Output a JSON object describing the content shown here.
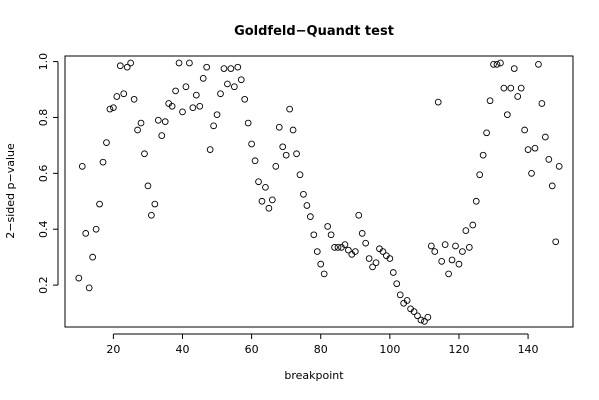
{
  "chart_data": {
    "type": "scatter",
    "title": "Goldfeld−Quandt test",
    "xlabel": "breakpoint",
    "ylabel": "2−sided p−value",
    "xlim": [
      6,
      153
    ],
    "ylim": [
      0.05,
      1.02
    ],
    "x_ticks": [
      20,
      40,
      60,
      80,
      100,
      120,
      140
    ],
    "y_ticks": [
      0.2,
      0.4,
      0.6,
      0.8,
      1.0
    ],
    "x_tick_labels": [
      "20",
      "40",
      "60",
      "80",
      "100",
      "120",
      "140"
    ],
    "y_tick_labels": [
      "0.2",
      "0.4",
      "0.6",
      "0.8",
      "1.0"
    ],
    "marker": "open-circle",
    "grid": false,
    "points": [
      [
        10,
        0.225
      ],
      [
        11,
        0.625
      ],
      [
        12,
        0.385
      ],
      [
        13,
        0.19
      ],
      [
        14,
        0.3
      ],
      [
        15,
        0.4
      ],
      [
        16,
        0.49
      ],
      [
        17,
        0.64
      ],
      [
        18,
        0.71
      ],
      [
        19,
        0.83
      ],
      [
        20,
        0.835
      ],
      [
        21,
        0.875
      ],
      [
        22,
        0.985
      ],
      [
        23,
        0.885
      ],
      [
        24,
        0.98
      ],
      [
        25,
        0.995
      ],
      [
        26,
        0.865
      ],
      [
        27,
        0.755
      ],
      [
        28,
        0.78
      ],
      [
        29,
        0.67
      ],
      [
        30,
        0.555
      ],
      [
        31,
        0.45
      ],
      [
        32,
        0.49
      ],
      [
        33,
        0.79
      ],
      [
        34,
        0.735
      ],
      [
        35,
        0.785
      ],
      [
        36,
        0.85
      ],
      [
        37,
        0.84
      ],
      [
        38,
        0.895
      ],
      [
        39,
        0.995
      ],
      [
        40,
        0.82
      ],
      [
        41,
        0.91
      ],
      [
        42,
        0.995
      ],
      [
        43,
        0.835
      ],
      [
        44,
        0.88
      ],
      [
        45,
        0.84
      ],
      [
        46,
        0.94
      ],
      [
        47,
        0.98
      ],
      [
        48,
        0.685
      ],
      [
        49,
        0.77
      ],
      [
        50,
        0.81
      ],
      [
        51,
        0.885
      ],
      [
        52,
        0.975
      ],
      [
        53,
        0.92
      ],
      [
        54,
        0.975
      ],
      [
        55,
        0.91
      ],
      [
        56,
        0.98
      ],
      [
        57,
        0.935
      ],
      [
        58,
        0.865
      ],
      [
        59,
        0.78
      ],
      [
        60,
        0.705
      ],
      [
        61,
        0.645
      ],
      [
        62,
        0.57
      ],
      [
        63,
        0.5
      ],
      [
        64,
        0.55
      ],
      [
        65,
        0.475
      ],
      [
        66,
        0.505
      ],
      [
        67,
        0.625
      ],
      [
        68,
        0.765
      ],
      [
        69,
        0.695
      ],
      [
        70,
        0.665
      ],
      [
        71,
        0.83
      ],
      [
        72,
        0.755
      ],
      [
        73,
        0.67
      ],
      [
        74,
        0.595
      ],
      [
        75,
        0.525
      ],
      [
        76,
        0.485
      ],
      [
        77,
        0.445
      ],
      [
        78,
        0.38
      ],
      [
        79,
        0.32
      ],
      [
        80,
        0.275
      ],
      [
        81,
        0.24
      ],
      [
        82,
        0.41
      ],
      [
        83,
        0.38
      ],
      [
        84,
        0.335
      ],
      [
        85,
        0.335
      ],
      [
        86,
        0.335
      ],
      [
        87,
        0.345
      ],
      [
        88,
        0.325
      ],
      [
        89,
        0.31
      ],
      [
        90,
        0.32
      ],
      [
        91,
        0.45
      ],
      [
        92,
        0.385
      ],
      [
        93,
        0.35
      ],
      [
        94,
        0.295
      ],
      [
        95,
        0.265
      ],
      [
        96,
        0.28
      ],
      [
        97,
        0.33
      ],
      [
        98,
        0.32
      ],
      [
        99,
        0.305
      ],
      [
        100,
        0.295
      ],
      [
        101,
        0.245
      ],
      [
        102,
        0.205
      ],
      [
        103,
        0.165
      ],
      [
        104,
        0.135
      ],
      [
        105,
        0.145
      ],
      [
        106,
        0.115
      ],
      [
        107,
        0.105
      ],
      [
        108,
        0.09
      ],
      [
        109,
        0.075
      ],
      [
        110,
        0.07
      ],
      [
        111,
        0.085
      ],
      [
        112,
        0.34
      ],
      [
        113,
        0.32
      ],
      [
        114,
        0.855
      ],
      [
        115,
        0.285
      ],
      [
        116,
        0.345
      ],
      [
        117,
        0.24
      ],
      [
        118,
        0.29
      ],
      [
        119,
        0.34
      ],
      [
        120,
        0.275
      ],
      [
        121,
        0.32
      ],
      [
        122,
        0.395
      ],
      [
        123,
        0.335
      ],
      [
        124,
        0.415
      ],
      [
        125,
        0.5
      ],
      [
        126,
        0.595
      ],
      [
        127,
        0.665
      ],
      [
        128,
        0.745
      ],
      [
        129,
        0.86
      ],
      [
        130,
        0.99
      ],
      [
        131,
        0.99
      ],
      [
        132,
        0.995
      ],
      [
        133,
        0.905
      ],
      [
        134,
        0.81
      ],
      [
        135,
        0.905
      ],
      [
        136,
        0.975
      ],
      [
        137,
        0.875
      ],
      [
        138,
        0.905
      ],
      [
        139,
        0.755
      ],
      [
        140,
        0.685
      ],
      [
        141,
        0.6
      ],
      [
        142,
        0.69
      ],
      [
        143,
        0.99
      ],
      [
        144,
        0.85
      ],
      [
        145,
        0.73
      ],
      [
        146,
        0.65
      ],
      [
        147,
        0.555
      ],
      [
        148,
        0.355
      ],
      [
        149,
        0.625
      ]
    ]
  }
}
